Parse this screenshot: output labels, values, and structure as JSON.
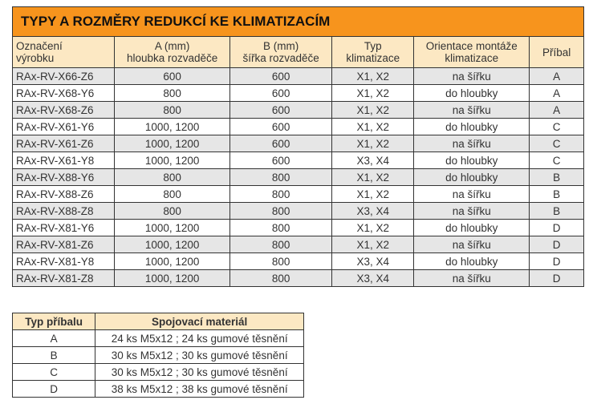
{
  "main_table": {
    "title": "TYPY A ROZMĚRY REDUKCÍ KE KLIMATIZACÍM",
    "headers": [
      [
        "Označení",
        "výrobku"
      ],
      [
        "A (mm)",
        "hloubka rozvaděče"
      ],
      [
        "B (mm)",
        "šířka rozvaděče"
      ],
      [
        "Typ",
        "klimatizace"
      ],
      [
        "Orientace montáže",
        "klimatizace"
      ],
      [
        "Příbal",
        ""
      ]
    ],
    "rows": [
      [
        "RAx-RV-X66-Z6",
        "600",
        "600",
        "X1, X2",
        "na šířku",
        "A"
      ],
      [
        "RAx-RV-X68-Y6",
        "800",
        "600",
        "X1, X2",
        "do hloubky",
        "A"
      ],
      [
        "RAx-RV-X68-Z6",
        "800",
        "600",
        "X1, X2",
        "na šířku",
        "A"
      ],
      [
        "RAx-RV-X61-Y6",
        "1000, 1200",
        "600",
        "X1, X2",
        "do hloubky",
        "C"
      ],
      [
        "RAx-RV-X61-Z6",
        "1000, 1200",
        "600",
        "X1, X2",
        "na šířku",
        "C"
      ],
      [
        "RAx-RV-X61-Y8",
        "1000, 1200",
        "600",
        "X3, X4",
        "do hloubky",
        "C"
      ],
      [
        "RAx-RV-X88-Y6",
        "800",
        "800",
        "X1, X2",
        "do hloubky",
        "B"
      ],
      [
        "RAx-RV-X88-Z6",
        "800",
        "800",
        "X1, X2",
        "na šířku",
        "B"
      ],
      [
        "RAx-RV-X88-Z8",
        "800",
        "800",
        "X3, X4",
        "na šířku",
        "B"
      ],
      [
        "RAx-RV-X81-Y6",
        "1000, 1200",
        "800",
        "X1, X2",
        "do hloubky",
        "D"
      ],
      [
        "RAx-RV-X81-Z6",
        "1000, 1200",
        "800",
        "X1, X2",
        "na šířku",
        "D"
      ],
      [
        "RAx-RV-X81-Y8",
        "1000, 1200",
        "800",
        "X3, X4",
        "do hloubky",
        "D"
      ],
      [
        "RAx-RV-X81-Z8",
        "1000, 1200",
        "800",
        "X3, X4",
        "na šířku",
        "D"
      ]
    ]
  },
  "pack_table": {
    "headers": [
      "Typ příbalu",
      "Spojovací materiál"
    ],
    "rows": [
      [
        "A",
        "24 ks M5x12 ; 24 ks gumové těsnění"
      ],
      [
        "B",
        "30 ks M5x12 ; 30 ks gumové těsnění"
      ],
      [
        "C",
        "30 ks M5x12 ; 30 ks gumové těsnění"
      ],
      [
        "D",
        "38 ks M5x12 ; 38 ks gumové těsnění"
      ]
    ]
  },
  "colors": {
    "title_bg": "#f7941d",
    "header_bg": "#fce8c3",
    "stripe": "#e6e6e6"
  }
}
